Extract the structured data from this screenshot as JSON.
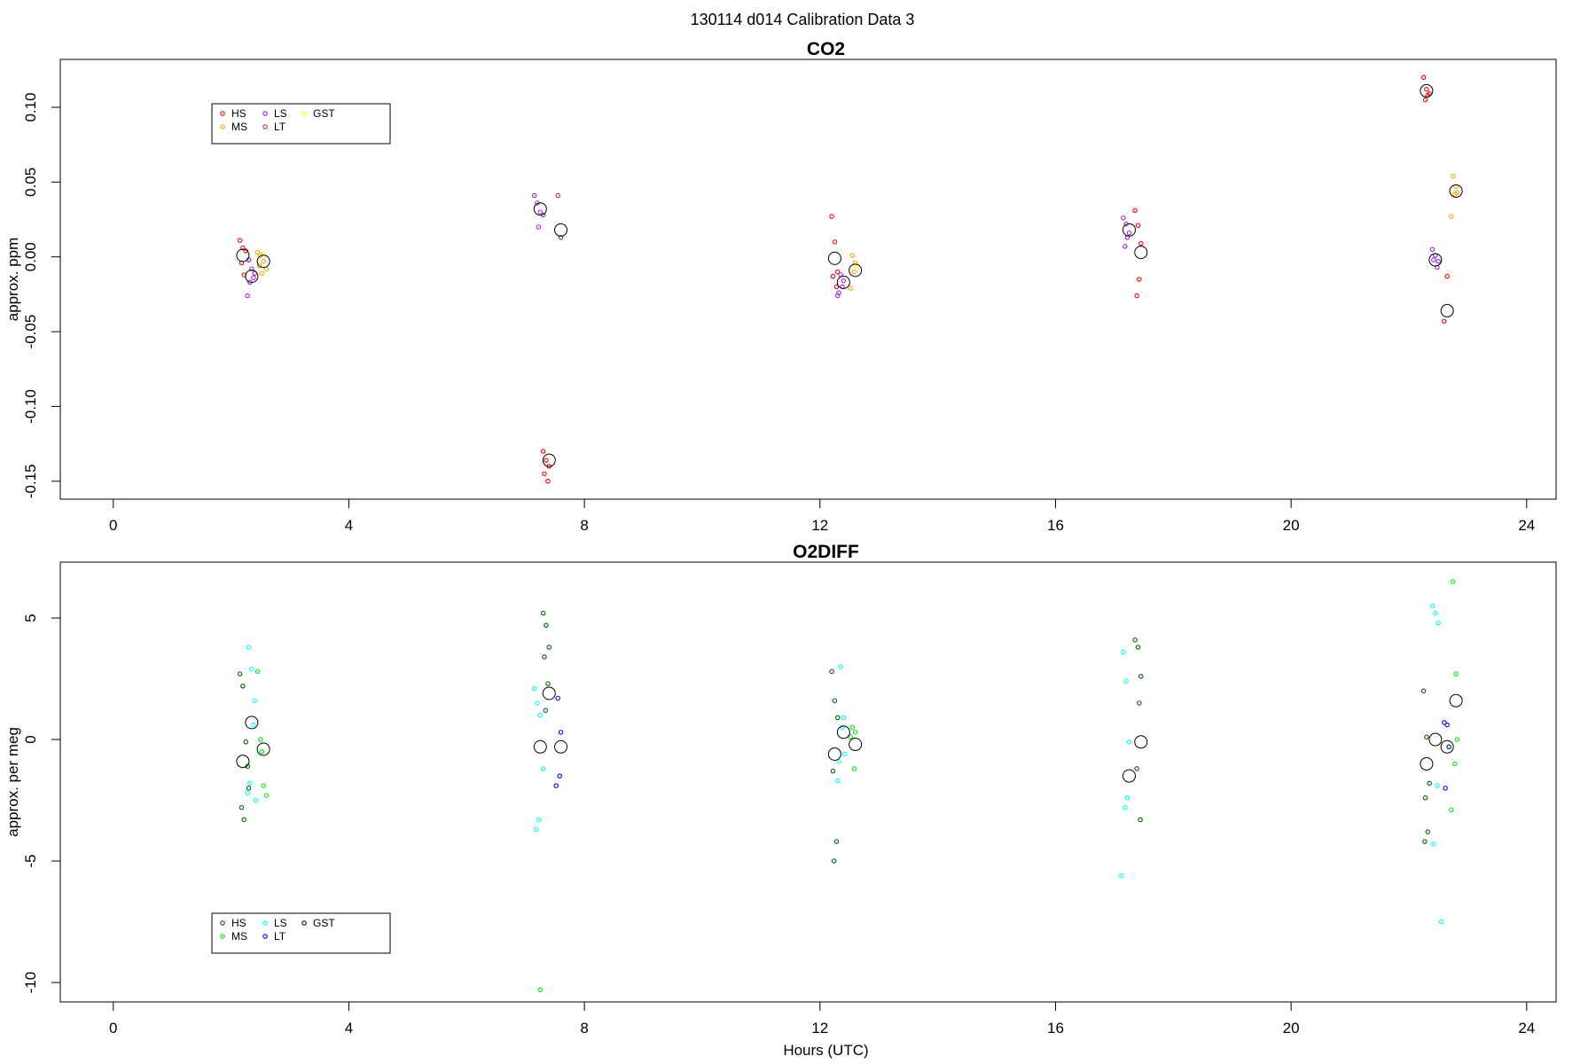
{
  "figure": {
    "main_title": "130114   d014   Calibration Data 3",
    "xlabel": "Hours (UTC)"
  },
  "chart_data": [
    {
      "type": "scatter",
      "title": "CO2",
      "xlabel": "",
      "ylabel": "approx. ppm",
      "xlim": [
        -0.9,
        24.5
      ],
      "ylim": [
        -0.162,
        0.132
      ],
      "xticks": [
        0,
        4,
        8,
        12,
        16,
        20,
        24
      ],
      "xtick_labels": [
        "0",
        "4",
        "8",
        "12",
        "16",
        "20",
        "24"
      ],
      "yticks": [
        0.1,
        0.05,
        0.0,
        -0.05,
        -0.1,
        -0.15
      ],
      "ytick_labels": [
        "0.10",
        "0.05",
        "0.00",
        "-0.05",
        "-0.10",
        "-0.15"
      ],
      "grid": false,
      "legend_position": "top-left",
      "legend_columns": [
        [
          "HS",
          "MS"
        ],
        [
          "LS",
          "LT"
        ],
        [
          "GST"
        ]
      ],
      "series": [
        {
          "name": "HS",
          "color": "#ff0000",
          "x": [
            2.15,
            2.2,
            2.25,
            2.3,
            2.18,
            2.22,
            7.3,
            7.35,
            7.4,
            7.32,
            7.38,
            12.2,
            12.25,
            12.3,
            12.22,
            12.28,
            17.35,
            17.4,
            17.45,
            17.42,
            17.38,
            22.25,
            22.3,
            22.35,
            22.28,
            22.32,
            22.65,
            22.6
          ],
          "y": [
            0.011,
            0.006,
            0.004,
            -0.002,
            -0.004,
            -0.012,
            -0.13,
            -0.136,
            -0.14,
            -0.145,
            -0.15,
            0.027,
            0.01,
            -0.01,
            -0.013,
            -0.02,
            0.031,
            0.021,
            0.009,
            -0.015,
            -0.026,
            0.12,
            0.112,
            0.109,
            0.105,
            0.108,
            -0.013,
            -0.043
          ]
        },
        {
          "name": "MS",
          "color": "#ffa500",
          "x": [
            2.45,
            2.5,
            2.55,
            2.6,
            2.52,
            2.48,
            12.55,
            12.6,
            12.58,
            12.52,
            22.75,
            22.8,
            22.82,
            22.78,
            22.72
          ],
          "y": [
            0.003,
            0.001,
            -0.003,
            -0.008,
            -0.011,
            -0.006,
            0.001,
            -0.004,
            -0.01,
            -0.021,
            0.054,
            0.047,
            0.043,
            0.042,
            0.027
          ]
        },
        {
          "name": "LS",
          "color": "#a020f0",
          "x": [
            2.3,
            2.35,
            2.4,
            2.38,
            2.32,
            2.28,
            7.15,
            7.2,
            7.25,
            7.3,
            7.22,
            12.35,
            12.4,
            12.38,
            12.32,
            12.3,
            17.15,
            17.2,
            17.25,
            17.22,
            17.18,
            22.4,
            22.45,
            22.5,
            22.48,
            22.42
          ],
          "y": [
            -0.002,
            -0.008,
            -0.011,
            -0.014,
            -0.017,
            -0.026,
            0.041,
            0.036,
            0.03,
            0.028,
            0.02,
            -0.012,
            -0.016,
            -0.02,
            -0.024,
            -0.026,
            0.026,
            0.022,
            0.016,
            0.013,
            0.007,
            0.005,
            0.001,
            -0.003,
            -0.007,
            -0.002
          ]
        },
        {
          "name": "LT",
          "color": "#b03060",
          "x": [
            7.55,
            7.6
          ],
          "y": [
            0.041,
            0.013
          ]
        },
        {
          "name": "GST",
          "color": "#ffff00",
          "x": [
            2.55,
            12.62
          ],
          "y": [
            0.002,
            -0.006
          ]
        },
        {
          "name": "",
          "color": "#000000",
          "marker": "large-circle",
          "x": [
            2.2,
            2.35,
            2.55,
            7.25,
            7.4,
            7.6,
            12.25,
            12.4,
            12.6,
            17.25,
            17.45,
            22.3,
            22.45,
            22.65,
            22.8
          ],
          "y": [
            0.001,
            -0.013,
            -0.003,
            0.032,
            -0.136,
            0.018,
            -0.001,
            -0.017,
            -0.009,
            0.018,
            0.003,
            0.111,
            -0.002,
            -0.036,
            0.044
          ]
        }
      ]
    },
    {
      "type": "scatter",
      "title": "O2DIFF",
      "xlabel": "Hours (UTC)",
      "ylabel": "approx. per meg",
      "xlim": [
        -0.9,
        24.5
      ],
      "ylim": [
        -10.8,
        7.3
      ],
      "xticks": [
        0,
        4,
        8,
        12,
        16,
        20,
        24
      ],
      "xtick_labels": [
        "0",
        "4",
        "8",
        "12",
        "16",
        "20",
        "24"
      ],
      "yticks": [
        5,
        0,
        -5,
        -10
      ],
      "ytick_labels": [
        "5",
        "0",
        "-5",
        "-10"
      ],
      "grid": false,
      "legend_position": "bottom-left",
      "legend_columns": [
        [
          "HS",
          "MS"
        ],
        [
          "LS",
          "LT"
        ],
        [
          "GST"
        ]
      ],
      "series": [
        {
          "name": "HS",
          "color": "#006400",
          "x": [
            2.15,
            2.2,
            2.25,
            2.3,
            2.18,
            2.22,
            2.28,
            7.3,
            7.35,
            7.4,
            7.32,
            7.38,
            7.34,
            12.2,
            12.25,
            12.3,
            12.22,
            12.28,
            12.24,
            17.35,
            17.4,
            17.45,
            17.42,
            17.38,
            17.44,
            22.25,
            22.3,
            22.35,
            22.28,
            22.32,
            22.27
          ],
          "y": [
            2.7,
            2.2,
            -0.1,
            -2.0,
            -2.8,
            -3.3,
            -1.1,
            5.2,
            4.7,
            3.8,
            3.4,
            2.3,
            1.2,
            2.8,
            1.6,
            0.9,
            -1.3,
            -4.2,
            -5.0,
            4.1,
            3.8,
            2.6,
            1.5,
            -1.2,
            -3.3,
            2.0,
            0.1,
            -1.8,
            -2.4,
            -3.8,
            -4.2
          ]
        },
        {
          "name": "MS",
          "color": "#00ee00",
          "x": [
            2.45,
            2.5,
            2.55,
            2.6,
            2.52,
            7.25,
            12.55,
            12.6,
            12.58,
            12.52,
            22.75,
            22.8,
            22.82,
            22.78,
            22.72
          ],
          "y": [
            2.8,
            0.0,
            -1.9,
            -2.3,
            -0.5,
            -10.3,
            0.5,
            0.3,
            -1.2,
            0.1,
            6.5,
            2.7,
            0.0,
            -1.0,
            -2.9
          ]
        },
        {
          "name": "LS",
          "color": "#00ffff",
          "x": [
            2.3,
            2.35,
            2.4,
            2.38,
            2.32,
            2.28,
            2.42,
            7.15,
            7.2,
            7.25,
            7.3,
            7.22,
            7.18,
            12.35,
            12.4,
            12.38,
            12.32,
            12.3,
            12.42,
            17.15,
            17.2,
            17.25,
            17.22,
            17.18,
            17.12,
            22.4,
            22.45,
            22.5,
            22.48,
            22.42,
            22.55
          ],
          "y": [
            3.8,
            2.9,
            1.6,
            0.6,
            -1.8,
            -2.2,
            -2.5,
            2.1,
            1.5,
            1.0,
            -1.2,
            -3.3,
            -3.7,
            3.0,
            0.9,
            0.5,
            -0.9,
            -1.7,
            -0.6,
            3.6,
            2.4,
            -0.1,
            -2.4,
            -2.8,
            -5.6,
            5.5,
            5.2,
            4.8,
            -1.9,
            -4.3,
            -7.5
          ]
        },
        {
          "name": "LT",
          "color": "#0000ff",
          "x": [
            7.55,
            7.6,
            7.58,
            7.52,
            22.6,
            22.65,
            22.62
          ],
          "y": [
            1.7,
            0.3,
            -1.5,
            -1.9,
            0.7,
            0.6,
            -2.0
          ]
        },
        {
          "name": "GST",
          "color": "#00008b",
          "x": [
            22.68
          ],
          "y": [
            -0.3
          ]
        },
        {
          "name": "",
          "color": "#000000",
          "marker": "large-circle",
          "x": [
            2.2,
            2.35,
            2.55,
            7.25,
            7.4,
            7.6,
            12.25,
            12.4,
            12.6,
            17.25,
            17.45,
            22.3,
            22.45,
            22.65,
            22.8
          ],
          "y": [
            -0.9,
            0.7,
            -0.4,
            -0.3,
            1.9,
            -0.3,
            -0.6,
            0.3,
            -0.2,
            -1.5,
            -0.1,
            -1.0,
            0.0,
            -0.3,
            1.6
          ]
        }
      ]
    }
  ]
}
